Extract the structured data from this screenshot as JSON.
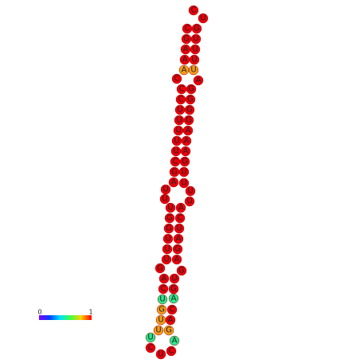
{
  "nodes": [
    {
      "label": "C",
      "color": "#e8000c"
    },
    {
      "label": "U",
      "color": "#e8000c"
    },
    {
      "label": "C",
      "color": "#e8000c"
    },
    {
      "label": "G",
      "color": "#e8000c"
    },
    {
      "label": "G",
      "color": "#e8000c"
    },
    {
      "label": "U",
      "color": "#e8000c"
    },
    {
      "label": "A",
      "color": "#e8000c"
    },
    {
      "label": "U",
      "color": "#e8000c"
    },
    {
      "label": "A",
      "color": "#e8000c"
    },
    {
      "label": "U",
      "color": "#e8000c"
    },
    {
      "label": "A",
      "color": "#f39c1a"
    },
    {
      "label": "U",
      "color": "#f39c1a"
    },
    {
      "label": "C",
      "color": "#e8000c"
    },
    {
      "label": "A",
      "color": "#e8000c"
    },
    {
      "label": "C",
      "color": "#e8000c"
    },
    {
      "label": "G",
      "color": "#e8000c"
    },
    {
      "label": "C",
      "color": "#e8000c"
    },
    {
      "label": "G",
      "color": "#e8000c"
    },
    {
      "label": "U",
      "color": "#e8000c"
    },
    {
      "label": "G",
      "color": "#e8000c"
    },
    {
      "label": "U",
      "color": "#e8000c"
    },
    {
      "label": "G",
      "color": "#e8000c"
    },
    {
      "label": "U",
      "color": "#e8000c"
    },
    {
      "label": "A",
      "color": "#e8000c"
    },
    {
      "label": "U",
      "color": "#e8000c"
    },
    {
      "label": "A",
      "color": "#e8000c"
    },
    {
      "label": "U",
      "color": "#e8000c"
    },
    {
      "label": "A",
      "color": "#e8000c"
    },
    {
      "label": "C",
      "color": "#e8000c"
    },
    {
      "label": "G",
      "color": "#e8000c"
    },
    {
      "label": "G",
      "color": "#e8000c"
    },
    {
      "label": "U",
      "color": "#e8000c"
    },
    {
      "label": "A",
      "color": "#e8000c"
    },
    {
      "label": "U",
      "color": "#e8000c"
    },
    {
      "label": "U",
      "color": "#e8000c"
    },
    {
      "label": "U",
      "color": "#e8000c"
    },
    {
      "label": "U",
      "color": "#e8000c"
    },
    {
      "label": "U",
      "color": "#e8000c"
    },
    {
      "label": "U",
      "color": "#e8000c"
    },
    {
      "label": "A",
      "color": "#e8000c"
    },
    {
      "label": "G",
      "color": "#e8000c"
    },
    {
      "label": "C",
      "color": "#e8000c"
    },
    {
      "label": "G",
      "color": "#e8000c"
    },
    {
      "label": "U",
      "color": "#e8000c"
    },
    {
      "label": "U",
      "color": "#e8000c"
    },
    {
      "label": "A",
      "color": "#e8000c"
    },
    {
      "label": "U",
      "color": "#e8000c"
    },
    {
      "label": "G",
      "color": "#e8000c"
    },
    {
      "label": "U",
      "color": "#e8000c"
    },
    {
      "label": "A",
      "color": "#e8000c"
    },
    {
      "label": "G",
      "color": "#e8000c"
    },
    {
      "label": "G",
      "color": "#e8000c"
    },
    {
      "label": "A",
      "color": "#e8000c"
    },
    {
      "label": "U",
      "color": "#e8000c"
    },
    {
      "label": "C",
      "color": "#e8000c"
    },
    {
      "label": "G",
      "color": "#e8000c"
    },
    {
      "label": "U",
      "color": "#2de68a"
    },
    {
      "label": "A",
      "color": "#2de68a"
    },
    {
      "label": "G",
      "color": "#f39c1a"
    },
    {
      "label": "C",
      "color": "#e8000c"
    },
    {
      "label": "U",
      "color": "#f39c1a"
    },
    {
      "label": "A",
      "color": "#e8000c"
    },
    {
      "label": "U",
      "color": "#f39c1a"
    },
    {
      "label": "G",
      "color": "#f39c1a"
    },
    {
      "label": "U",
      "color": "#2de68a"
    },
    {
      "label": "C",
      "color": "#e8000c"
    },
    {
      "label": "U",
      "color": "#e8000c"
    },
    {
      "label": "C",
      "color": "#e8000c"
    },
    {
      "label": "A",
      "color": "#2de68a"
    }
  ],
  "colorbar": {
    "min": "0",
    "max": "1"
  }
}
